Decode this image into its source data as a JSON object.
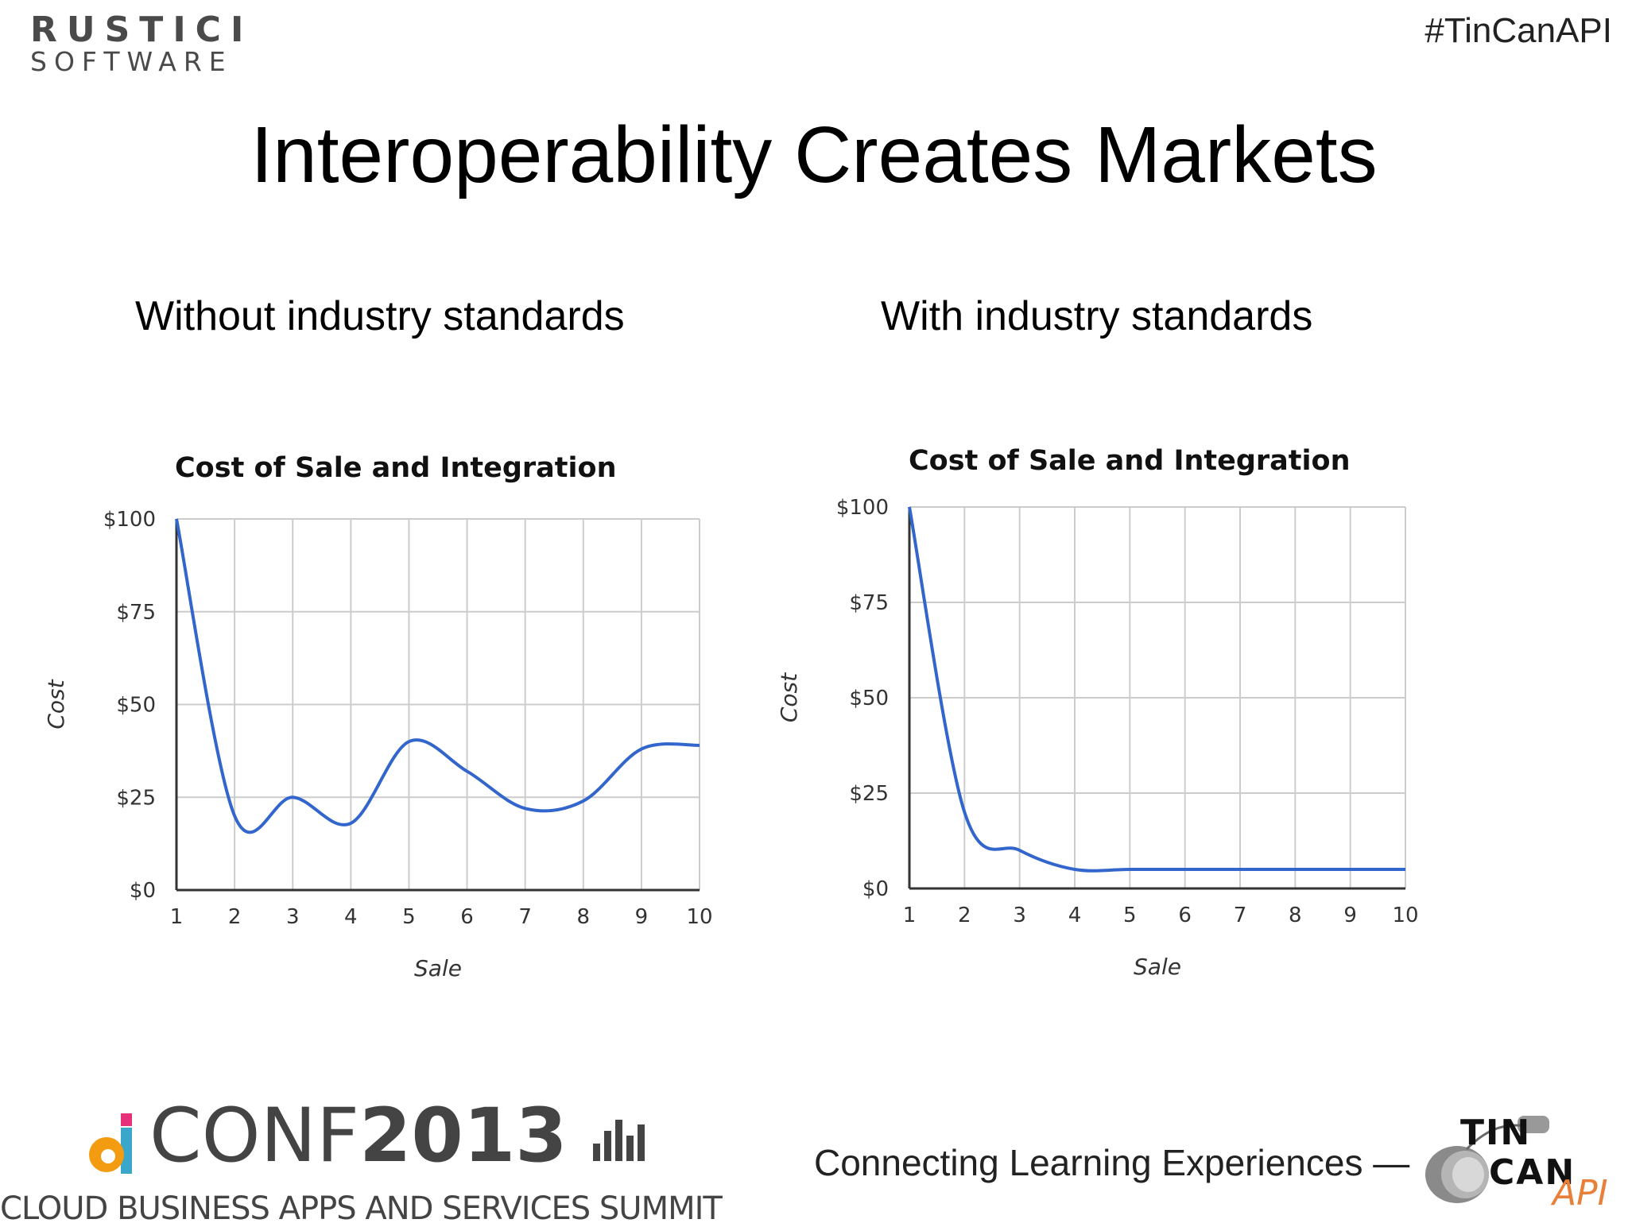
{
  "header": {
    "logo_line1": "RUSTICI",
    "logo_line2": "SOFTWARE",
    "hashtag": "#TinCanAPI"
  },
  "slide": {
    "title": "Interoperability Creates Markets",
    "subtitle_left": "Without industry standards",
    "subtitle_right": "With industry standards"
  },
  "footer": {
    "dconf_prefix": "CONF",
    "dconf_year": "2013",
    "dconf_subtitle": "CLOUD BUSINESS APPS AND SERVICES SUMMIT",
    "tagline": "Connecting Learning Experiences —",
    "tincan_tin": "TIN",
    "tincan_can": "CAN",
    "tincan_api": "API"
  },
  "colors": {
    "line": "#3366cc",
    "grid": "#cccccc",
    "axis": "#333333",
    "dconf_orange": "#f39c12",
    "dconf_teal": "#3aa6c9",
    "dconf_pink": "#e6307a",
    "api_orange": "#e8803a"
  },
  "chart_data": [
    {
      "type": "line",
      "title": "Cost of Sale and Integration",
      "xlabel": "Sale",
      "ylabel": "Cost",
      "x": [
        1,
        2,
        3,
        4,
        5,
        6,
        7,
        8,
        9,
        10
      ],
      "series": [
        {
          "values": [
            100,
            20,
            25,
            18,
            40,
            32,
            22,
            24,
            38,
            39
          ]
        }
      ],
      "xlim": [
        1,
        10
      ],
      "ylim": [
        0,
        100
      ],
      "y_ticks": [
        "$0",
        "$25",
        "$50",
        "$75",
        "$100"
      ],
      "x_ticks": [
        "1",
        "2",
        "3",
        "4",
        "5",
        "6",
        "7",
        "8",
        "9",
        "10"
      ],
      "grid": true,
      "legend": "none"
    },
    {
      "type": "line",
      "title": "Cost of Sale and Integration",
      "xlabel": "Sale",
      "ylabel": "Cost",
      "x": [
        1,
        2,
        3,
        4,
        5,
        6,
        7,
        8,
        9,
        10
      ],
      "series": [
        {
          "values": [
            100,
            20,
            10,
            5,
            5,
            5,
            5,
            5,
            5,
            5
          ]
        }
      ],
      "xlim": [
        1,
        10
      ],
      "ylim": [
        0,
        100
      ],
      "y_ticks": [
        "$0",
        "$25",
        "$50",
        "$75",
        "$100"
      ],
      "x_ticks": [
        "1",
        "2",
        "3",
        "4",
        "5",
        "6",
        "7",
        "8",
        "9",
        "10"
      ],
      "grid": true,
      "legend": "none"
    }
  ]
}
